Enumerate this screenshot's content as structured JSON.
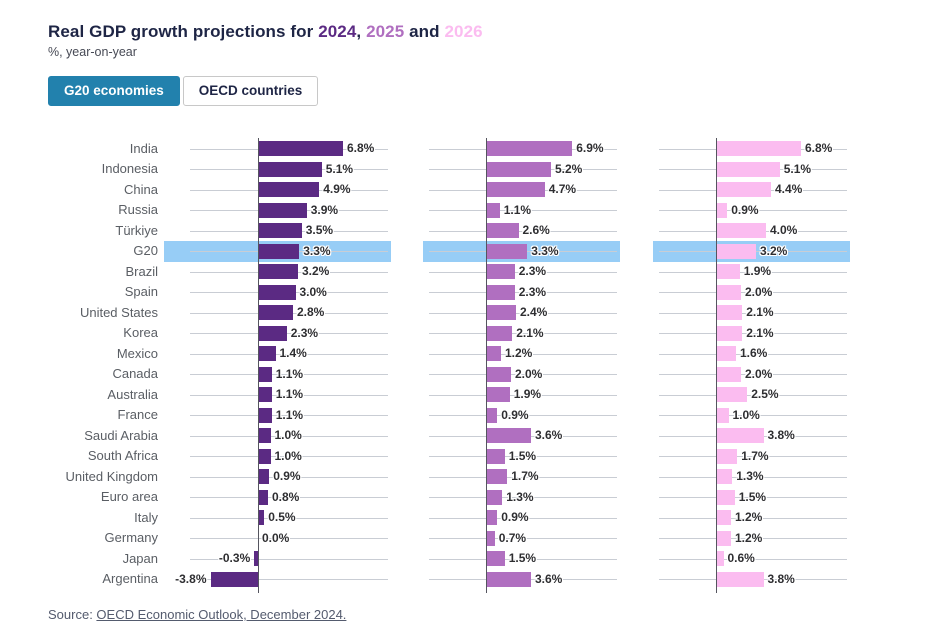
{
  "title": {
    "prefix": "Real GDP growth projections for ",
    "year1": "2024",
    "sep1": ", ",
    "year2": "2025",
    "sep2": " and ",
    "year3": "2026"
  },
  "subtitle": "%, year-on-year",
  "toggle": {
    "active_label": "G20 economies",
    "inactive_label": "OECD countries"
  },
  "source": {
    "prefix": "Source: ",
    "link_text": "OECD Economic Outlook, December 2024."
  },
  "colors": {
    "title_text": "#1e2545",
    "year_2024": "#5b2a83",
    "year_2025": "#b06fc0",
    "year_2026": "#fbbcf0",
    "highlight_band": "#97cdf6",
    "active_button": "#2281ad",
    "gridline": "#c9cdd4",
    "axis": "#55555f"
  },
  "chart_data": {
    "type": "bar",
    "orientation": "horizontal",
    "value_suffix": "%",
    "highlighted_category": "G20",
    "grid": true,
    "xlim": [
      -5.5,
      10.5
    ],
    "categories": [
      "India",
      "Indonesia",
      "China",
      "Russia",
      "Türkiye",
      "G20",
      "Brazil",
      "Spain",
      "United States",
      "Korea",
      "Mexico",
      "Canada",
      "Australia",
      "France",
      "Saudi Arabia",
      "South Africa",
      "United Kingdom",
      "Euro area",
      "Italy",
      "Germany",
      "Japan",
      "Argentina"
    ],
    "series": [
      {
        "name": "2024",
        "color": "#5b2a83",
        "values": [
          6.8,
          5.1,
          4.9,
          3.9,
          3.5,
          3.3,
          3.2,
          3.0,
          2.8,
          2.3,
          1.4,
          1.1,
          1.1,
          1.1,
          1.0,
          1.0,
          0.9,
          0.8,
          0.5,
          0.0,
          -0.3,
          -3.8
        ]
      },
      {
        "name": "2025",
        "color": "#b06fc0",
        "values": [
          6.9,
          5.2,
          4.7,
          1.1,
          2.6,
          3.3,
          2.3,
          2.3,
          2.4,
          2.1,
          1.2,
          2.0,
          1.9,
          0.9,
          3.6,
          1.5,
          1.7,
          1.3,
          0.9,
          0.7,
          1.5,
          3.6
        ]
      },
      {
        "name": "2026",
        "color": "#fbbcf0",
        "values": [
          6.8,
          5.1,
          4.4,
          0.9,
          4.0,
          3.2,
          1.9,
          2.0,
          2.1,
          2.1,
          1.6,
          2.0,
          2.5,
          1.0,
          3.8,
          1.7,
          1.3,
          1.5,
          1.2,
          1.2,
          0.6,
          3.8
        ]
      }
    ]
  }
}
